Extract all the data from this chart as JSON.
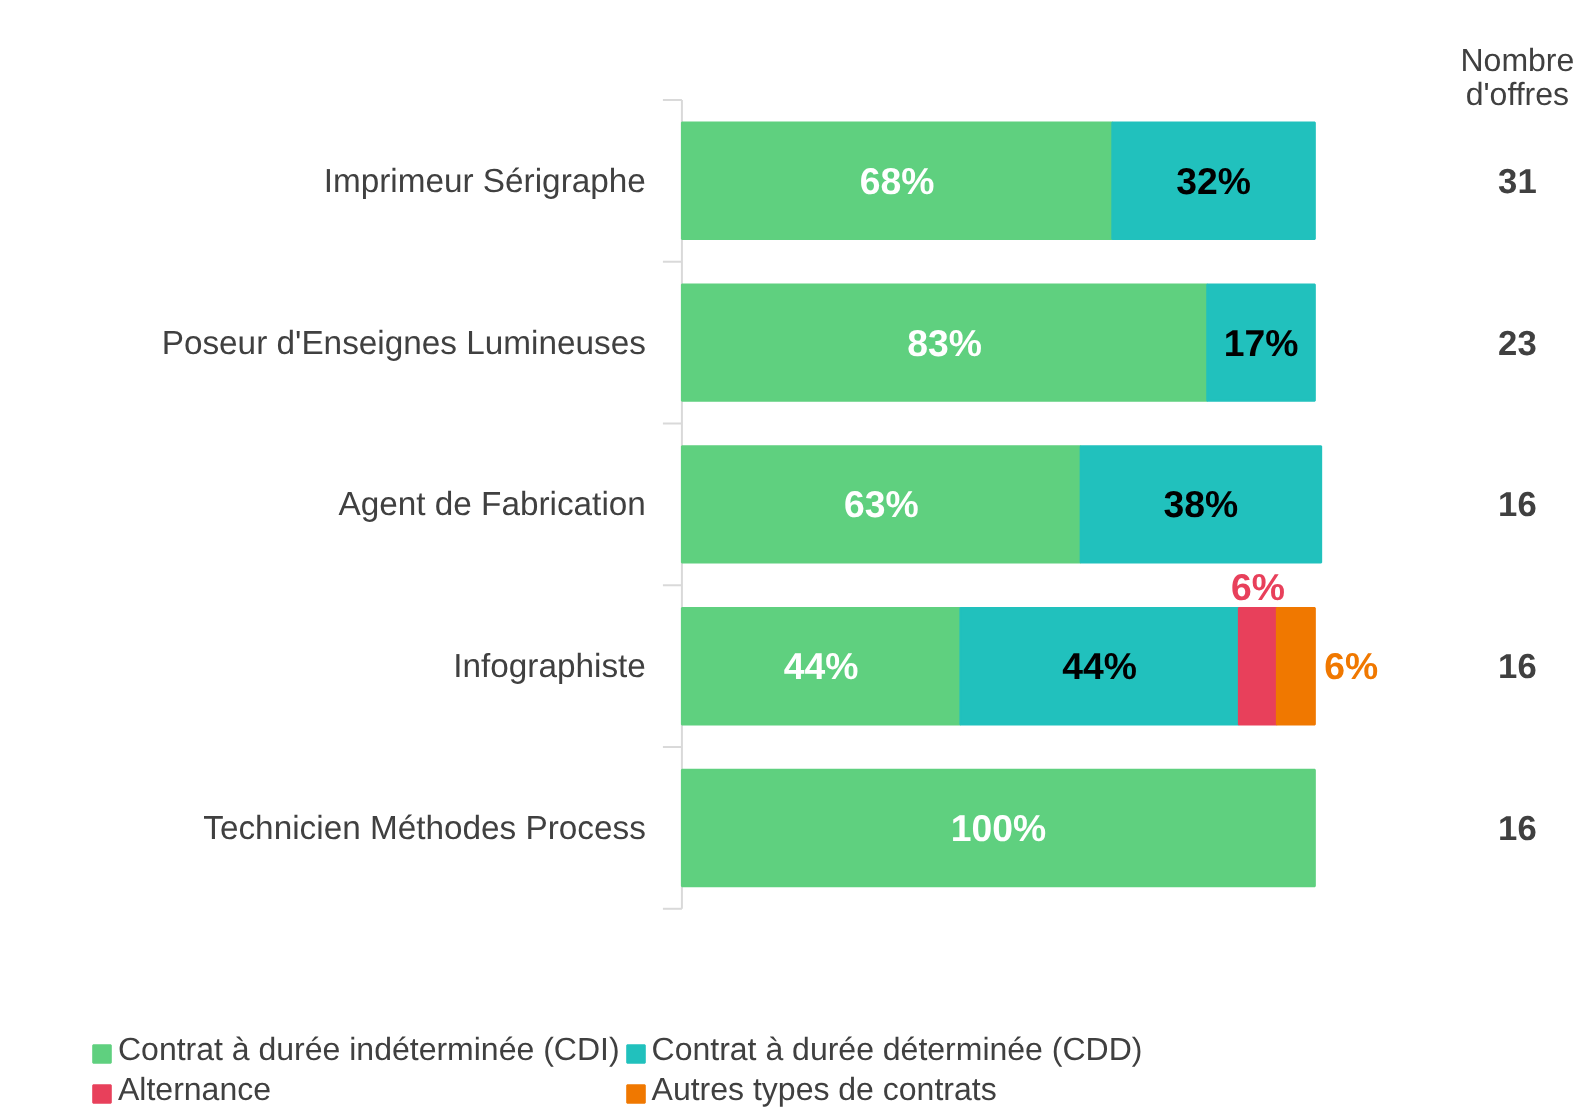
{
  "chart_data": {
    "type": "bar",
    "orientation": "horizontal",
    "stacked": true,
    "legend": "bottom",
    "grid": false,
    "categories": [
      "Imprimeur Sérigraphe",
      "Poseur d'Enseignes Lumineuses",
      "Agent de Fabrication",
      "Infographiste",
      "Technicien Méthodes Process"
    ],
    "series": [
      {
        "name": "Contrat à durée indéterminée (CDI)",
        "color": "#5fd07f",
        "values": [
          68,
          83,
          63,
          44,
          100
        ],
        "value_labels": [
          "68%",
          "83%",
          "63%",
          "44%",
          "100%"
        ]
      },
      {
        "name": "Contrat à durée déterminée (CDD)",
        "color": "#21c1bd",
        "values": [
          32,
          17,
          38,
          44,
          null
        ],
        "value_labels": [
          "32%",
          "17%",
          "38%",
          "44%",
          null
        ]
      },
      {
        "name": "Alternance",
        "color": "#e8405b",
        "values": [
          null,
          null,
          null,
          6,
          null
        ],
        "value_labels": [
          null,
          null,
          null,
          "6%",
          null
        ]
      },
      {
        "name": "Autres types de contrats",
        "color": "#f07800",
        "values": [
          null,
          null,
          null,
          6,
          null
        ],
        "value_labels": [
          null,
          null,
          null,
          "6%",
          null
        ]
      }
    ],
    "annotations": [
      "Nombre d'offres",
      "31",
      "23",
      "16",
      "16",
      "16"
    ]
  }
}
